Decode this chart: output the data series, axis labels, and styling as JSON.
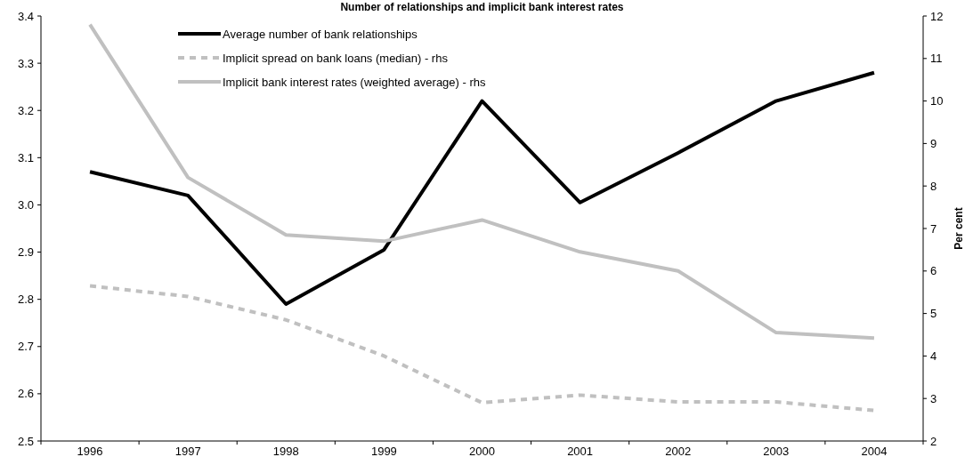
{
  "chart_data": {
    "type": "line",
    "title": "Number of relationships and implicit bank interest rates",
    "y2label": "Per cent",
    "categories": [
      "1996",
      "1997",
      "1998",
      "1999",
      "2000",
      "2001",
      "2002",
      "2003",
      "2004"
    ],
    "ylim": [
      2.5,
      3.4
    ],
    "yticks": [
      2.5,
      2.6,
      2.7,
      2.8,
      2.9,
      {
        "value": 3,
        "label": "3.0"
      },
      3.1,
      3.2,
      3.3,
      3.4
    ],
    "y2lim": [
      2,
      12
    ],
    "y2ticks": [
      2,
      3,
      4,
      5,
      6,
      7,
      8,
      9,
      10,
      11,
      12
    ],
    "legend": "top left",
    "grid": false,
    "series": [
      {
        "name": "Average number of bank relationships",
        "color": "#000000",
        "line_style": "solid",
        "values": [
          3.07,
          3.02,
          2.79,
          2.905,
          3.22,
          3.005,
          3.11,
          3.22,
          3.28
        ]
      },
      {
        "name": "Implicit spread on bank loans (median) - rhs",
        "color": "#c0c0c0",
        "line_style": "dashed",
        "axis": "y2",
        "values": [
          5.65,
          5.4,
          4.85,
          4.0,
          2.9,
          3.08,
          2.92,
          2.92,
          2.72
        ]
      },
      {
        "name": "Implicit bank interest rates (weighted average) - rhs",
        "color": "#c0c0c0",
        "line_style": "solid",
        "axis": "y2",
        "values": [
          11.8,
          8.2,
          6.85,
          6.7,
          7.2,
          6.45,
          6.0,
          4.55,
          4.42
        ]
      }
    ]
  }
}
